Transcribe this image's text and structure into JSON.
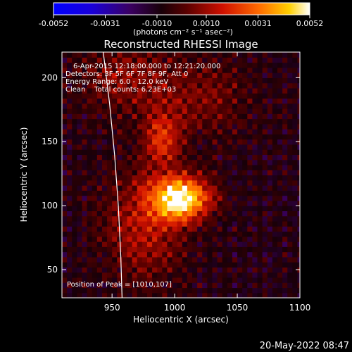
{
  "chart_data": {
    "type": "heatmap",
    "title": "Reconstructed RHESSI Image",
    "xlabel": "Heliocentric X (arcsec)",
    "ylabel": "Heliocentric Y (arcsec)",
    "xlim": [
      910,
      1100
    ],
    "ylim": [
      28,
      220
    ],
    "x_ticks": [
      950,
      1000,
      1050,
      1100
    ],
    "x_tick_labels": [
      "950",
      "1000",
      "1050",
      "1100"
    ],
    "y_ticks": [
      50,
      100,
      150,
      200
    ],
    "y_tick_labels": [
      "50",
      "100",
      "150",
      "200"
    ],
    "colorbar": {
      "range": [
        -0.0052,
        0.0052
      ],
      "ticks": [
        -0.0052,
        -0.0031,
        -0.001,
        0.001,
        0.0031,
        0.0052
      ],
      "tick_labels": [
        "-0.0052",
        "-0.0031",
        "-0.0010",
        "0.0010",
        "0.0031",
        "0.0052"
      ],
      "units_label": "(photons cm⁻² s⁻¹ asec⁻²)"
    },
    "annotations": {
      "time": "6-Apr-2015 12:18:00.000 to 12:21:20.000",
      "detectors": "Detectors: 3F 5F 6F 7F 8F 9F, Att 0",
      "energy": "Energy Range: 6.0 - 12.0 keV",
      "clean": "Clean    Total counts: 6.23E+03",
      "peak": "Position of Peak = [1010,107]"
    },
    "peak": {
      "x": 1010,
      "y": 107
    },
    "source_regions": [
      {
        "x": 1005,
        "y": 106,
        "sx": 16,
        "sy": 12,
        "amp": 1.0
      },
      {
        "x": 990,
        "y": 152,
        "sx": 10,
        "sy": 14,
        "amp": 0.45
      },
      {
        "x": 975,
        "y": 85,
        "sx": 22,
        "sy": 30,
        "amp": 0.35
      },
      {
        "x": 1020,
        "y": 185,
        "sx": 28,
        "sy": 22,
        "amp": 0.22
      },
      {
        "x": 960,
        "y": 200,
        "sx": 25,
        "sy": 20,
        "amp": 0.25
      }
    ],
    "limb_points": [
      [
        943,
        220
      ],
      [
        948,
        180
      ],
      [
        952,
        140
      ],
      [
        955,
        100
      ],
      [
        957,
        60
      ],
      [
        958,
        28
      ]
    ],
    "grid": false,
    "timestamp": "20-May-2022 08:47"
  }
}
